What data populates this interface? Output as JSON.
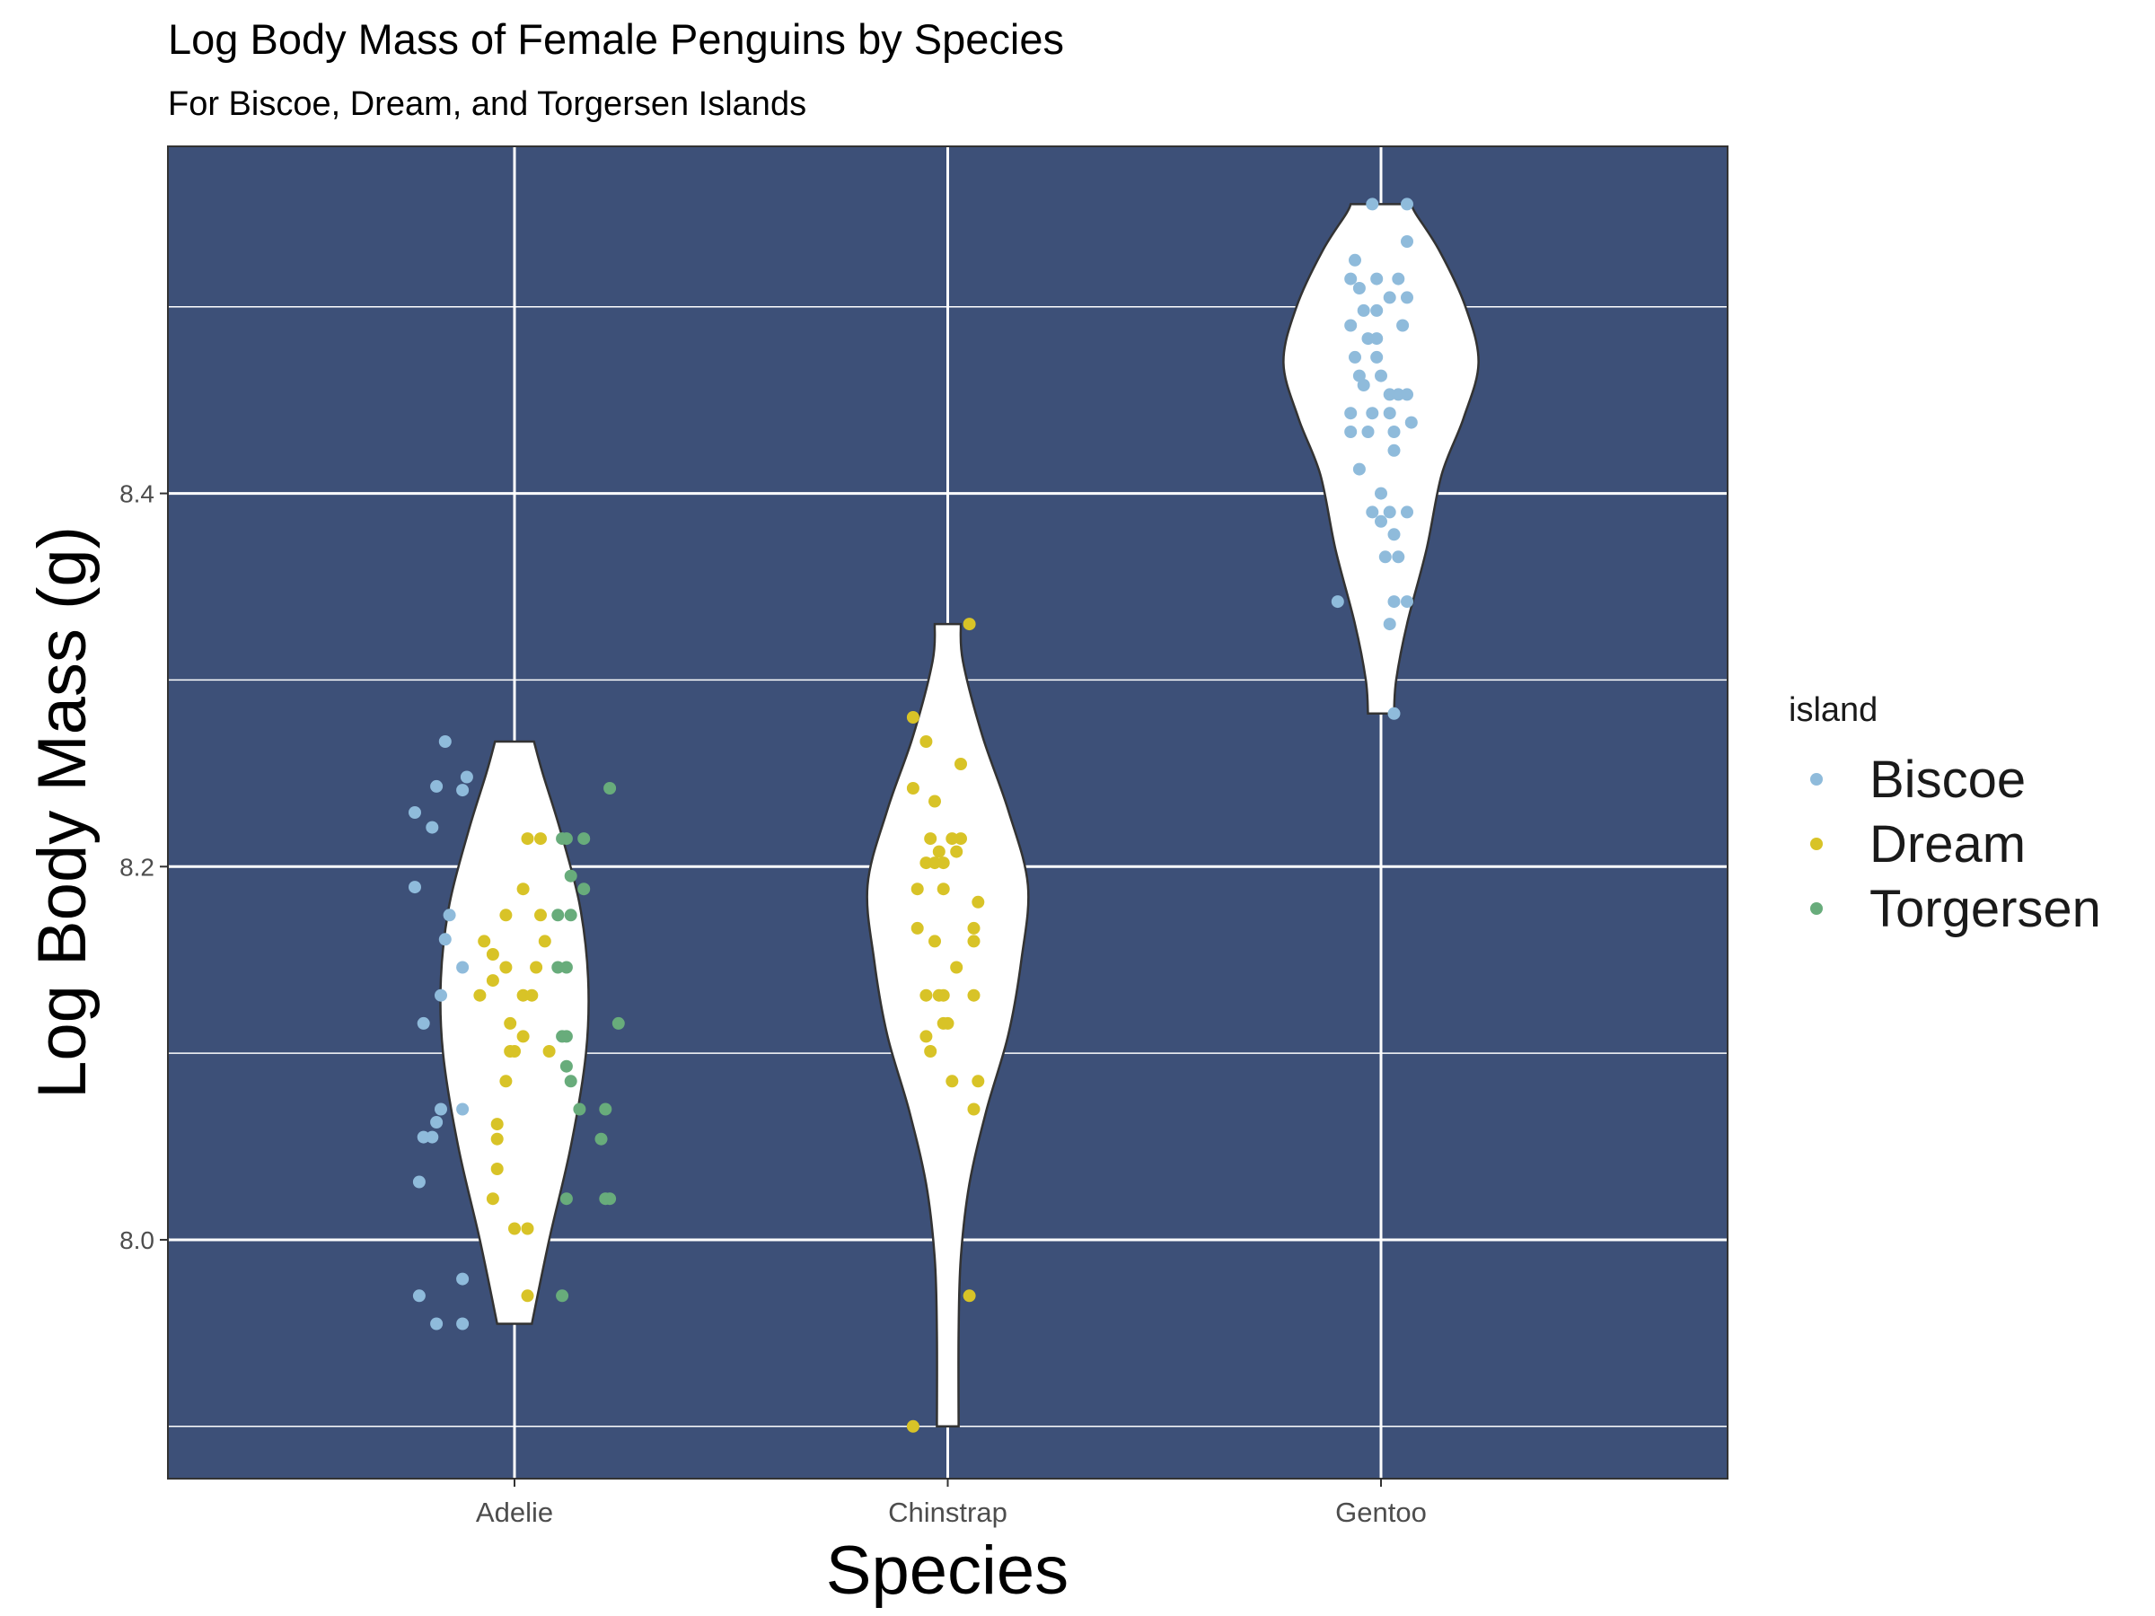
{
  "chart_data": {
    "type": "violin",
    "title": "Log Body Mass of Female Penguins by Species",
    "subtitle": "For Biscoe, Dream, and Torgersen Islands",
    "xlabel": "Species",
    "ylabel": "Log Body Mass (g)",
    "categories": [
      "Adelie",
      "Chinstrap",
      "Gentoo"
    ],
    "ylim": [
      7.872,
      8.586
    ],
    "yticks": [
      8.0,
      8.2,
      8.4
    ],
    "yticks_minor": [
      7.9,
      8.1,
      8.3,
      8.5
    ],
    "ytick_labels": [
      "8.0",
      "8.2",
      "8.4"
    ],
    "grid": true,
    "panel_background": "#3D5078",
    "legend": {
      "title": "island",
      "position": "right",
      "entries": [
        {
          "name": "Biscoe",
          "color": "#8FBBDB"
        },
        {
          "name": "Dream",
          "color": "#D8C327"
        },
        {
          "name": "Torgersen",
          "color": "#68AC7B"
        }
      ]
    },
    "violins": [
      {
        "species": "Adelie",
        "fill": "#FFFFFF",
        "outline": [
          {
            "y": 7.955,
            "w": 0.04
          },
          {
            "y": 8.0,
            "w": 0.08
          },
          {
            "y": 8.05,
            "w": 0.13
          },
          {
            "y": 8.1,
            "w": 0.165
          },
          {
            "y": 8.14,
            "w": 0.17
          },
          {
            "y": 8.18,
            "w": 0.15
          },
          {
            "y": 8.22,
            "w": 0.105
          },
          {
            "y": 8.25,
            "w": 0.065
          },
          {
            "y": 8.267,
            "w": 0.045
          }
        ],
        "points": [
          {
            "y": 8.267,
            "dx": -0.16,
            "island": "Biscoe"
          },
          {
            "y": 8.248,
            "dx": -0.11,
            "island": "Biscoe"
          },
          {
            "y": 8.243,
            "dx": -0.18,
            "island": "Biscoe"
          },
          {
            "y": 8.241,
            "dx": -0.12,
            "island": "Biscoe"
          },
          {
            "y": 8.229,
            "dx": -0.23,
            "island": "Biscoe"
          },
          {
            "y": 8.221,
            "dx": -0.19,
            "island": "Biscoe"
          },
          {
            "y": 8.189,
            "dx": -0.23,
            "island": "Biscoe"
          },
          {
            "y": 8.174,
            "dx": -0.15,
            "island": "Biscoe"
          },
          {
            "y": 8.161,
            "dx": -0.16,
            "island": "Biscoe"
          },
          {
            "y": 8.146,
            "dx": -0.12,
            "island": "Biscoe"
          },
          {
            "y": 8.131,
            "dx": -0.17,
            "island": "Biscoe"
          },
          {
            "y": 8.116,
            "dx": -0.21,
            "island": "Biscoe"
          },
          {
            "y": 8.07,
            "dx": -0.17,
            "island": "Biscoe"
          },
          {
            "y": 8.07,
            "dx": -0.12,
            "island": "Biscoe"
          },
          {
            "y": 8.063,
            "dx": -0.18,
            "island": "Biscoe"
          },
          {
            "y": 8.055,
            "dx": -0.21,
            "island": "Biscoe"
          },
          {
            "y": 8.055,
            "dx": -0.19,
            "island": "Biscoe"
          },
          {
            "y": 8.031,
            "dx": -0.22,
            "island": "Biscoe"
          },
          {
            "y": 7.979,
            "dx": -0.12,
            "island": "Biscoe"
          },
          {
            "y": 7.97,
            "dx": -0.22,
            "island": "Biscoe"
          },
          {
            "y": 7.955,
            "dx": -0.18,
            "island": "Biscoe"
          },
          {
            "y": 7.955,
            "dx": -0.12,
            "island": "Biscoe"
          },
          {
            "y": 8.215,
            "dx": 0.03,
            "island": "Dream"
          },
          {
            "y": 8.215,
            "dx": 0.06,
            "island": "Dream"
          },
          {
            "y": 8.188,
            "dx": 0.02,
            "island": "Dream"
          },
          {
            "y": 8.174,
            "dx": -0.02,
            "island": "Dream"
          },
          {
            "y": 8.174,
            "dx": 0.06,
            "island": "Dream"
          },
          {
            "y": 8.16,
            "dx": -0.07,
            "island": "Dream"
          },
          {
            "y": 8.16,
            "dx": 0.07,
            "island": "Dream"
          },
          {
            "y": 8.153,
            "dx": -0.05,
            "island": "Dream"
          },
          {
            "y": 8.146,
            "dx": -0.02,
            "island": "Dream"
          },
          {
            "y": 8.146,
            "dx": 0.05,
            "island": "Dream"
          },
          {
            "y": 8.139,
            "dx": -0.05,
            "island": "Dream"
          },
          {
            "y": 8.131,
            "dx": -0.08,
            "island": "Dream"
          },
          {
            "y": 8.131,
            "dx": 0.02,
            "island": "Dream"
          },
          {
            "y": 8.131,
            "dx": 0.04,
            "island": "Dream"
          },
          {
            "y": 8.116,
            "dx": -0.01,
            "island": "Dream"
          },
          {
            "y": 8.109,
            "dx": 0.02,
            "island": "Dream"
          },
          {
            "y": 8.101,
            "dx": -0.01,
            "island": "Dream"
          },
          {
            "y": 8.101,
            "dx": 0.0,
            "island": "Dream"
          },
          {
            "y": 8.101,
            "dx": 0.08,
            "island": "Dream"
          },
          {
            "y": 8.085,
            "dx": -0.02,
            "island": "Dream"
          },
          {
            "y": 8.062,
            "dx": -0.04,
            "island": "Dream"
          },
          {
            "y": 8.054,
            "dx": -0.04,
            "island": "Dream"
          },
          {
            "y": 8.038,
            "dx": -0.04,
            "island": "Dream"
          },
          {
            "y": 8.022,
            "dx": -0.05,
            "island": "Dream"
          },
          {
            "y": 8.006,
            "dx": 0.0,
            "island": "Dream"
          },
          {
            "y": 8.006,
            "dx": 0.03,
            "island": "Dream"
          },
          {
            "y": 7.97,
            "dx": 0.03,
            "island": "Dream"
          },
          {
            "y": 8.242,
            "dx": 0.22,
            "island": "Torgersen"
          },
          {
            "y": 8.215,
            "dx": 0.11,
            "island": "Torgersen"
          },
          {
            "y": 8.215,
            "dx": 0.12,
            "island": "Torgersen"
          },
          {
            "y": 8.215,
            "dx": 0.16,
            "island": "Torgersen"
          },
          {
            "y": 8.195,
            "dx": 0.13,
            "island": "Torgersen"
          },
          {
            "y": 8.188,
            "dx": 0.16,
            "island": "Torgersen"
          },
          {
            "y": 8.174,
            "dx": 0.1,
            "island": "Torgersen"
          },
          {
            "y": 8.174,
            "dx": 0.13,
            "island": "Torgersen"
          },
          {
            "y": 8.146,
            "dx": 0.1,
            "island": "Torgersen"
          },
          {
            "y": 8.146,
            "dx": 0.12,
            "island": "Torgersen"
          },
          {
            "y": 8.116,
            "dx": 0.24,
            "island": "Torgersen"
          },
          {
            "y": 8.109,
            "dx": 0.11,
            "island": "Torgersen"
          },
          {
            "y": 8.109,
            "dx": 0.12,
            "island": "Torgersen"
          },
          {
            "y": 8.093,
            "dx": 0.12,
            "island": "Torgersen"
          },
          {
            "y": 8.085,
            "dx": 0.13,
            "island": "Torgersen"
          },
          {
            "y": 8.07,
            "dx": 0.15,
            "island": "Torgersen"
          },
          {
            "y": 8.07,
            "dx": 0.21,
            "island": "Torgersen"
          },
          {
            "y": 8.054,
            "dx": 0.2,
            "island": "Torgersen"
          },
          {
            "y": 8.022,
            "dx": 0.12,
            "island": "Torgersen"
          },
          {
            "y": 8.022,
            "dx": 0.21,
            "island": "Torgersen"
          },
          {
            "y": 8.022,
            "dx": 0.22,
            "island": "Torgersen"
          },
          {
            "y": 7.97,
            "dx": 0.11,
            "island": "Torgersen"
          }
        ]
      },
      {
        "species": "Chinstrap",
        "fill": "#FFFFFF",
        "outline": [
          {
            "y": 7.9,
            "w": 0.025
          },
          {
            "y": 7.95,
            "w": 0.025
          },
          {
            "y": 7.99,
            "w": 0.03
          },
          {
            "y": 8.03,
            "w": 0.05
          },
          {
            "y": 8.07,
            "w": 0.09
          },
          {
            "y": 8.11,
            "w": 0.14
          },
          {
            "y": 8.15,
            "w": 0.17
          },
          {
            "y": 8.19,
            "w": 0.185
          },
          {
            "y": 8.23,
            "w": 0.14
          },
          {
            "y": 8.27,
            "w": 0.08
          },
          {
            "y": 8.31,
            "w": 0.035
          },
          {
            "y": 8.33,
            "w": 0.03
          }
        ],
        "points": [
          {
            "y": 8.33,
            "dx": 0.05,
            "island": "Dream"
          },
          {
            "y": 8.28,
            "dx": -0.08,
            "island": "Dream"
          },
          {
            "y": 8.267,
            "dx": -0.05,
            "island": "Dream"
          },
          {
            "y": 8.255,
            "dx": 0.03,
            "island": "Dream"
          },
          {
            "y": 8.242,
            "dx": -0.08,
            "island": "Dream"
          },
          {
            "y": 8.235,
            "dx": -0.03,
            "island": "Dream"
          },
          {
            "y": 8.215,
            "dx": -0.04,
            "island": "Dream"
          },
          {
            "y": 8.215,
            "dx": 0.01,
            "island": "Dream"
          },
          {
            "y": 8.215,
            "dx": 0.03,
            "island": "Dream"
          },
          {
            "y": 8.208,
            "dx": -0.02,
            "island": "Dream"
          },
          {
            "y": 8.208,
            "dx": 0.02,
            "island": "Dream"
          },
          {
            "y": 8.202,
            "dx": -0.05,
            "island": "Dream"
          },
          {
            "y": 8.202,
            "dx": -0.03,
            "island": "Dream"
          },
          {
            "y": 8.202,
            "dx": -0.01,
            "island": "Dream"
          },
          {
            "y": 8.188,
            "dx": -0.07,
            "island": "Dream"
          },
          {
            "y": 8.188,
            "dx": -0.01,
            "island": "Dream"
          },
          {
            "y": 8.181,
            "dx": 0.07,
            "island": "Dream"
          },
          {
            "y": 8.167,
            "dx": -0.07,
            "island": "Dream"
          },
          {
            "y": 8.167,
            "dx": 0.06,
            "island": "Dream"
          },
          {
            "y": 8.16,
            "dx": -0.03,
            "island": "Dream"
          },
          {
            "y": 8.16,
            "dx": 0.06,
            "island": "Dream"
          },
          {
            "y": 8.146,
            "dx": 0.02,
            "island": "Dream"
          },
          {
            "y": 8.131,
            "dx": -0.05,
            "island": "Dream"
          },
          {
            "y": 8.131,
            "dx": -0.02,
            "island": "Dream"
          },
          {
            "y": 8.131,
            "dx": -0.01,
            "island": "Dream"
          },
          {
            "y": 8.131,
            "dx": 0.06,
            "island": "Dream"
          },
          {
            "y": 8.116,
            "dx": -0.01,
            "island": "Dream"
          },
          {
            "y": 8.116,
            "dx": 0.0,
            "island": "Dream"
          },
          {
            "y": 8.109,
            "dx": -0.05,
            "island": "Dream"
          },
          {
            "y": 8.101,
            "dx": -0.04,
            "island": "Dream"
          },
          {
            "y": 8.085,
            "dx": 0.01,
            "island": "Dream"
          },
          {
            "y": 8.085,
            "dx": 0.07,
            "island": "Dream"
          },
          {
            "y": 8.07,
            "dx": 0.06,
            "island": "Dream"
          },
          {
            "y": 7.97,
            "dx": 0.05,
            "island": "Dream"
          },
          {
            "y": 7.9,
            "dx": -0.08,
            "island": "Dream"
          }
        ]
      },
      {
        "species": "Gentoo",
        "fill": "#FFFFFF",
        "outline": [
          {
            "y": 8.282,
            "w": 0.03
          },
          {
            "y": 8.3,
            "w": 0.035
          },
          {
            "y": 8.33,
            "w": 0.06
          },
          {
            "y": 8.37,
            "w": 0.105
          },
          {
            "y": 8.41,
            "w": 0.14
          },
          {
            "y": 8.44,
            "w": 0.19
          },
          {
            "y": 8.47,
            "w": 0.225
          },
          {
            "y": 8.5,
            "w": 0.195
          },
          {
            "y": 8.53,
            "w": 0.135
          },
          {
            "y": 8.55,
            "w": 0.08
          },
          {
            "y": 8.555,
            "w": 0.07
          }
        ],
        "points": [
          {
            "y": 8.555,
            "dx": -0.02,
            "island": "Biscoe"
          },
          {
            "y": 8.555,
            "dx": 0.06,
            "island": "Biscoe"
          },
          {
            "y": 8.535,
            "dx": 0.06,
            "island": "Biscoe"
          },
          {
            "y": 8.525,
            "dx": -0.06,
            "island": "Biscoe"
          },
          {
            "y": 8.515,
            "dx": -0.07,
            "island": "Biscoe"
          },
          {
            "y": 8.515,
            "dx": -0.01,
            "island": "Biscoe"
          },
          {
            "y": 8.515,
            "dx": 0.04,
            "island": "Biscoe"
          },
          {
            "y": 8.51,
            "dx": -0.05,
            "island": "Biscoe"
          },
          {
            "y": 8.505,
            "dx": 0.02,
            "island": "Biscoe"
          },
          {
            "y": 8.505,
            "dx": 0.06,
            "island": "Biscoe"
          },
          {
            "y": 8.498,
            "dx": -0.04,
            "island": "Biscoe"
          },
          {
            "y": 8.498,
            "dx": -0.01,
            "island": "Biscoe"
          },
          {
            "y": 8.49,
            "dx": -0.07,
            "island": "Biscoe"
          },
          {
            "y": 8.49,
            "dx": 0.05,
            "island": "Biscoe"
          },
          {
            "y": 8.483,
            "dx": -0.03,
            "island": "Biscoe"
          },
          {
            "y": 8.483,
            "dx": -0.01,
            "island": "Biscoe"
          },
          {
            "y": 8.473,
            "dx": -0.06,
            "island": "Biscoe"
          },
          {
            "y": 8.473,
            "dx": -0.01,
            "island": "Biscoe"
          },
          {
            "y": 8.463,
            "dx": -0.05,
            "island": "Biscoe"
          },
          {
            "y": 8.463,
            "dx": 0.0,
            "island": "Biscoe"
          },
          {
            "y": 8.458,
            "dx": -0.04,
            "island": "Biscoe"
          },
          {
            "y": 8.453,
            "dx": 0.02,
            "island": "Biscoe"
          },
          {
            "y": 8.453,
            "dx": 0.04,
            "island": "Biscoe"
          },
          {
            "y": 8.453,
            "dx": 0.06,
            "island": "Biscoe"
          },
          {
            "y": 8.443,
            "dx": -0.07,
            "island": "Biscoe"
          },
          {
            "y": 8.443,
            "dx": -0.02,
            "island": "Biscoe"
          },
          {
            "y": 8.443,
            "dx": 0.02,
            "island": "Biscoe"
          },
          {
            "y": 8.438,
            "dx": 0.07,
            "island": "Biscoe"
          },
          {
            "y": 8.433,
            "dx": -0.07,
            "island": "Biscoe"
          },
          {
            "y": 8.433,
            "dx": -0.03,
            "island": "Biscoe"
          },
          {
            "y": 8.433,
            "dx": 0.03,
            "island": "Biscoe"
          },
          {
            "y": 8.423,
            "dx": 0.03,
            "island": "Biscoe"
          },
          {
            "y": 8.413,
            "dx": -0.05,
            "island": "Biscoe"
          },
          {
            "y": 8.4,
            "dx": 0.0,
            "island": "Biscoe"
          },
          {
            "y": 8.39,
            "dx": -0.02,
            "island": "Biscoe"
          },
          {
            "y": 8.39,
            "dx": 0.02,
            "island": "Biscoe"
          },
          {
            "y": 8.39,
            "dx": 0.06,
            "island": "Biscoe"
          },
          {
            "y": 8.385,
            "dx": 0.0,
            "island": "Biscoe"
          },
          {
            "y": 8.378,
            "dx": 0.03,
            "island": "Biscoe"
          },
          {
            "y": 8.366,
            "dx": 0.01,
            "island": "Biscoe"
          },
          {
            "y": 8.366,
            "dx": 0.04,
            "island": "Biscoe"
          },
          {
            "y": 8.342,
            "dx": -0.1,
            "island": "Biscoe"
          },
          {
            "y": 8.342,
            "dx": 0.03,
            "island": "Biscoe"
          },
          {
            "y": 8.342,
            "dx": 0.06,
            "island": "Biscoe"
          },
          {
            "y": 8.33,
            "dx": 0.02,
            "island": "Biscoe"
          },
          {
            "y": 8.282,
            "dx": 0.03,
            "island": "Biscoe"
          }
        ]
      }
    ]
  }
}
